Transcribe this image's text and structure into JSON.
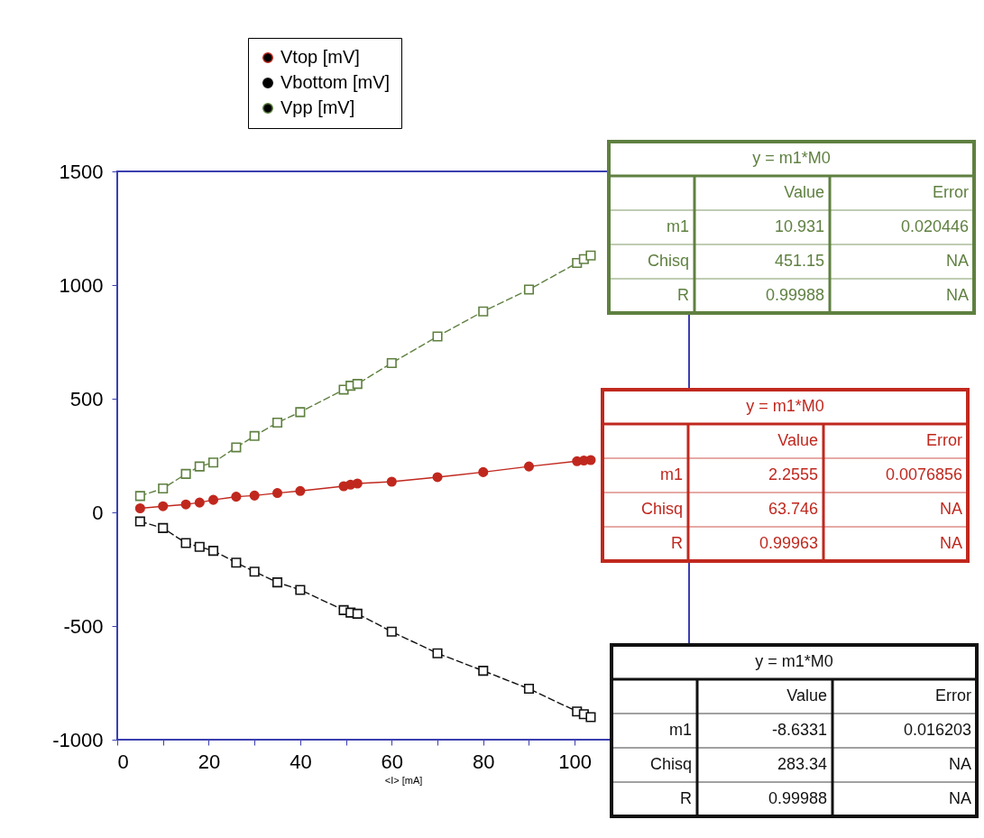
{
  "chart_data": {
    "type": "line",
    "xlabel": "<I> [mA]",
    "x": [
      5,
      10,
      15,
      18,
      21,
      26,
      30,
      35,
      40,
      49.5,
      51,
      52.5,
      60,
      70,
      80,
      90,
      100.5,
      102,
      103.5
    ],
    "series": [
      {
        "name": "Vtop [mV]",
        "color": "#c0281e",
        "marker": "circle",
        "line_style": "solid",
        "values": [
          18,
          27,
          35,
          43,
          55,
          69,
          74,
          85,
          94,
          115,
          122,
          127,
          135,
          155,
          177,
          202,
          225,
          228,
          230
        ]
      },
      {
        "name": "Vbottom [mV]",
        "color": "#111111",
        "marker": "square",
        "line_style": "dashed",
        "values": [
          -40,
          -69,
          -135,
          -152,
          -169,
          -221,
          -261,
          -308,
          -341,
          -430,
          -441,
          -446,
          -525,
          -620,
          -697,
          -776,
          -876,
          -888,
          -901
        ]
      },
      {
        "name": "Vpp [mV]",
        "color": "#5f8040",
        "marker": "square",
        "line_style": "dashed",
        "values": [
          72,
          105,
          169,
          202,
          219,
          286,
          336,
          395,
          441,
          540,
          557,
          565,
          657,
          774,
          884,
          980,
          1097,
          1114,
          1130
        ]
      }
    ],
    "xlim": [
      0,
      125
    ],
    "ylim": [
      -1000,
      1500
    ],
    "xticks": [
      0,
      {
        "value": 10,
        "label": null
      },
      20,
      {
        "value": 30,
        "label": null
      },
      40,
      {
        "value": 50,
        "label": null
      },
      60,
      {
        "value": 70,
        "label": null
      },
      80,
      {
        "value": 90,
        "label": null
      },
      100,
      {
        "value": 110,
        "label": null
      },
      {
        "value": 120,
        "label": null
      }
    ],
    "yticks": [
      -1000,
      -500,
      0,
      500,
      1000,
      1500
    ],
    "grid": false,
    "legend": "top",
    "annotations": [
      "y =  m1*M0",
      "Value",
      "Error",
      "m1",
      "10.931",
      "0.020446",
      "Chisq",
      "451.15",
      "NA",
      "R",
      "0.99988",
      "NA",
      "y =  m1*M0",
      "Value",
      "Error",
      "m1",
      "2.2555",
      "0.0076856",
      "Chisq",
      "63.746",
      "NA",
      "R",
      "0.99963",
      "NA",
      "y =  m1*M0",
      "Value",
      "Error",
      "m1",
      "-8.6331",
      "0.016203",
      "Chisq",
      "283.34",
      "NA",
      "R",
      "0.99988",
      "NA"
    ]
  }
}
